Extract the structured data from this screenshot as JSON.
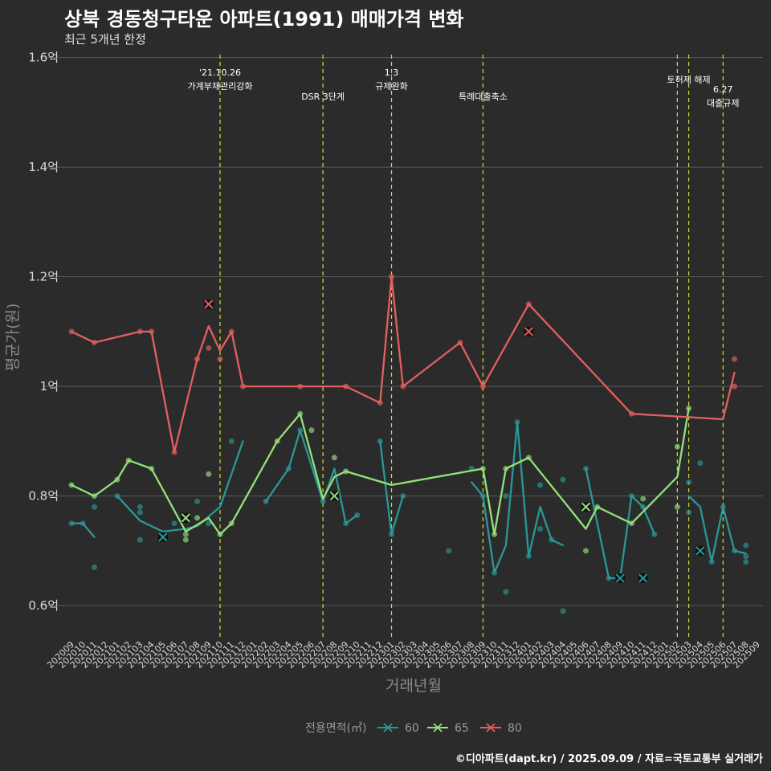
{
  "title": "상북 경동청구타운 아파트(1991) 매매가격 변화",
  "subtitle": "최근 5개년 한정",
  "caption": "©디아파트(dapt.kr) / 2025.09.09 / 자료=국토교통부 실거래가",
  "chart_data": {
    "type": "line",
    "xlabel": "거래년월",
    "ylabel": "평균가(원)",
    "ylim": [
      0.54,
      1.62
    ],
    "y_ticks": [
      {
        "value": 0.6,
        "label": "0.6억"
      },
      {
        "value": 0.8,
        "label": "0.8억"
      },
      {
        "value": 1.0,
        "label": "1억"
      },
      {
        "value": 1.2,
        "label": "1.2억"
      },
      {
        "value": 1.4,
        "label": "1.4억"
      },
      {
        "value": 1.6,
        "label": "1.6억"
      }
    ],
    "categories": [
      "202009",
      "202010",
      "202011",
      "202012",
      "202101",
      "202102",
      "202103",
      "202104",
      "202105",
      "202106",
      "202107",
      "202108",
      "202109",
      "202110",
      "202111",
      "202112",
      "202201",
      "202202",
      "202203",
      "202204",
      "202205",
      "202206",
      "202207",
      "202208",
      "202209",
      "202210",
      "202211",
      "202212",
      "202301",
      "202302",
      "202303",
      "202304",
      "202305",
      "202306",
      "202307",
      "202308",
      "202309",
      "202310",
      "202311",
      "202312",
      "202401",
      "202402",
      "202403",
      "202404",
      "202405",
      "202406",
      "202407",
      "202408",
      "202409",
      "202410",
      "202411",
      "202412",
      "202501",
      "202502",
      "202503",
      "202504",
      "202505",
      "202506",
      "202507",
      "202508",
      "202509"
    ],
    "grid": true,
    "legend_position": "bottom",
    "legend_title": "전용면적(㎡)",
    "colors": {
      "60": "#2a9896",
      "65": "#92e27a",
      "80": "#e35f5f"
    },
    "events": [
      {
        "x": "202110",
        "lines": [
          "'21.10.26",
          "가계부채관리강화"
        ]
      },
      {
        "x": "202207",
        "lines": [
          "DSR 3단계"
        ]
      },
      {
        "x": "202301",
        "lines": [
          "1.3",
          "규제완화"
        ]
      },
      {
        "x": "202309",
        "lines": [
          "특례대출축소"
        ]
      },
      {
        "x": "202502",
        "lines": []
      },
      {
        "x": "202503",
        "lines": [
          "토허제 해제"
        ]
      },
      {
        "x": "202506",
        "lines": [
          "6.27",
          "대출규제"
        ]
      }
    ],
    "series": [
      {
        "name": "60",
        "line_segments": [
          [
            [
              "202009",
              0.75
            ],
            [
              "202010",
              0.75
            ],
            [
              "202011",
              0.725
            ]
          ],
          [
            [
              "202101",
              0.8
            ],
            [
              "202103",
              0.755
            ],
            [
              "202105",
              0.735
            ],
            [
              "202107",
              0.74
            ],
            [
              "202108",
              0.745
            ],
            [
              "202110",
              0.78
            ],
            [
              "202112",
              0.9
            ]
          ],
          [
            [
              "202202",
              0.79
            ],
            [
              "202204",
              0.85
            ],
            [
              "202205",
              0.92
            ],
            [
              "202207",
              0.79
            ],
            [
              "202208",
              0.85
            ],
            [
              "202209",
              0.75
            ],
            [
              "202210",
              0.765
            ]
          ],
          [
            [
              "202212",
              0.9
            ],
            [
              "202301",
              0.73
            ],
            [
              "202302",
              0.8
            ]
          ],
          [
            [
              "202308",
              0.825
            ],
            [
              "202309",
              0.8
            ],
            [
              "202310",
              0.66
            ],
            [
              "202311",
              0.71
            ],
            [
              "202312",
              0.935
            ],
            [
              "202401",
              0.69
            ],
            [
              "202402",
              0.78
            ],
            [
              "202403",
              0.72
            ],
            [
              "202404",
              0.71
            ]
          ],
          [
            [
              "202406",
              0.85
            ],
            [
              "202408",
              0.65
            ],
            [
              "202409",
              0.65
            ],
            [
              "202410",
              0.8
            ],
            [
              "202411",
              0.78
            ],
            [
              "202412",
              0.73
            ]
          ],
          [
            [
              "202503",
              0.8
            ],
            [
              "202504",
              0.78
            ],
            [
              "202505",
              0.68
            ],
            [
              "202506",
              0.78
            ],
            [
              "202507",
              0.7
            ],
            [
              "202508",
              0.695
            ]
          ]
        ],
        "points": [
          [
            "202009",
            0.75
          ],
          [
            "202010",
            0.75
          ],
          [
            "202011",
            0.78
          ],
          [
            "202011",
            0.67
          ],
          [
            "202101",
            0.8
          ],
          [
            "202103",
            0.78
          ],
          [
            "202103",
            0.77
          ],
          [
            "202103",
            0.72
          ],
          [
            "202106",
            0.75
          ],
          [
            "202108",
            0.79
          ],
          [
            "202109",
            0.75
          ],
          [
            "202111",
            0.9
          ],
          [
            "202202",
            0.79
          ],
          [
            "202204",
            0.85
          ],
          [
            "202205",
            0.92
          ],
          [
            "202207",
            0.79
          ],
          [
            "202209",
            0.75
          ],
          [
            "202210",
            0.765
          ],
          [
            "202212",
            0.9
          ],
          [
            "202301",
            0.73
          ],
          [
            "202302",
            0.8
          ],
          [
            "202306",
            0.7
          ],
          [
            "202308",
            0.85
          ],
          [
            "202309",
            0.8
          ],
          [
            "202310",
            0.66
          ],
          [
            "202311",
            0.625
          ],
          [
            "202311",
            0.8
          ],
          [
            "202312",
            0.935
          ],
          [
            "202401",
            0.69
          ],
          [
            "202402",
            0.82
          ],
          [
            "202402",
            0.74
          ],
          [
            "202403",
            0.72
          ],
          [
            "202404",
            0.83
          ],
          [
            "202404",
            0.59
          ],
          [
            "202406",
            0.85
          ],
          [
            "202408",
            0.65
          ],
          [
            "202410",
            0.8
          ],
          [
            "202411",
            0.78
          ],
          [
            "202412",
            0.73
          ],
          [
            "202503",
            0.825
          ],
          [
            "202503",
            0.77
          ],
          [
            "202504",
            0.86
          ],
          [
            "202505",
            0.68
          ],
          [
            "202506",
            0.78
          ],
          [
            "202507",
            0.7
          ],
          [
            "202508",
            0.71
          ],
          [
            "202508",
            0.69
          ],
          [
            "202508",
            0.68
          ]
        ],
        "markers": [
          [
            "202105",
            0.725
          ],
          [
            "202409",
            0.65
          ],
          [
            "202411",
            0.65
          ],
          [
            "202504",
            0.7
          ]
        ]
      },
      {
        "name": "65",
        "line_segments": [
          [
            [
              "202009",
              0.82
            ],
            [
              "202011",
              0.8
            ],
            [
              "202101",
              0.83
            ],
            [
              "202102",
              0.865
            ],
            [
              "202104",
              0.85
            ],
            [
              "202107",
              0.735
            ],
            [
              "202109",
              0.76
            ],
            [
              "202110",
              0.73
            ],
            [
              "202111",
              0.75
            ],
            [
              "202203",
              0.9
            ],
            [
              "202205",
              0.95
            ],
            [
              "202207",
              0.795
            ],
            [
              "202208",
              0.835
            ],
            [
              "202209",
              0.845
            ],
            [
              "202301",
              0.82
            ],
            [
              "202309",
              0.85
            ],
            [
              "202310",
              0.73
            ],
            [
              "202311",
              0.85
            ],
            [
              "202401",
              0.87
            ],
            [
              "202406",
              0.74
            ],
            [
              "202407",
              0.78
            ],
            [
              "202410",
              0.75
            ],
            [
              "202502",
              0.835
            ],
            [
              "202503",
              0.96
            ]
          ]
        ],
        "points": [
          [
            "202009",
            0.82
          ],
          [
            "202011",
            0.8
          ],
          [
            "202101",
            0.83
          ],
          [
            "202102",
            0.865
          ],
          [
            "202104",
            0.85
          ],
          [
            "202107",
            0.73
          ],
          [
            "202107",
            0.72
          ],
          [
            "202108",
            0.76
          ],
          [
            "202109",
            0.84
          ],
          [
            "202110",
            0.73
          ],
          [
            "202111",
            0.75
          ],
          [
            "202203",
            0.9
          ],
          [
            "202205",
            0.95
          ],
          [
            "202206",
            0.92
          ],
          [
            "202208",
            0.87
          ],
          [
            "202209",
            0.845
          ],
          [
            "202309",
            0.85
          ],
          [
            "202310",
            0.73
          ],
          [
            "202311",
            0.85
          ],
          [
            "202401",
            0.87
          ],
          [
            "202406",
            0.7
          ],
          [
            "202407",
            0.78
          ],
          [
            "202410",
            0.75
          ],
          [
            "202411",
            0.795
          ],
          [
            "202502",
            0.89
          ],
          [
            "202502",
            0.78
          ],
          [
            "202503",
            0.96
          ]
        ],
        "markers": [
          [
            "202107",
            0.76
          ],
          [
            "202208",
            0.8
          ],
          [
            "202406",
            0.78
          ]
        ]
      },
      {
        "name": "80",
        "line_segments": [
          [
            [
              "202009",
              1.1
            ],
            [
              "202011",
              1.08
            ],
            [
              "202103",
              1.1
            ],
            [
              "202104",
              1.1
            ],
            [
              "202106",
              0.88
            ],
            [
              "202108",
              1.05
            ],
            [
              "202109",
              1.11
            ],
            [
              "202110",
              1.065
            ],
            [
              "202111",
              1.1
            ],
            [
              "202112",
              1.0
            ],
            [
              "202205",
              1.0
            ],
            [
              "202209",
              1.0
            ],
            [
              "202212",
              0.97
            ],
            [
              "202301",
              1.2
            ],
            [
              "202302",
              1.0
            ],
            [
              "202307",
              1.08
            ],
            [
              "202309",
              1.0
            ],
            [
              "202401",
              1.15
            ],
            [
              "202410",
              0.95
            ],
            [
              "202506",
              0.94
            ],
            [
              "202507",
              1.025
            ]
          ]
        ],
        "points": [
          [
            "202009",
            1.1
          ],
          [
            "202011",
            1.08
          ],
          [
            "202103",
            1.1
          ],
          [
            "202104",
            1.1
          ],
          [
            "202106",
            0.88
          ],
          [
            "202108",
            1.05
          ],
          [
            "202109",
            1.07
          ],
          [
            "202110",
            1.05
          ],
          [
            "202111",
            1.1
          ],
          [
            "202112",
            1.0
          ],
          [
            "202205",
            1.0
          ],
          [
            "202209",
            1.0
          ],
          [
            "202212",
            0.97
          ],
          [
            "202301",
            1.2
          ],
          [
            "202302",
            1.0
          ],
          [
            "202307",
            1.08
          ],
          [
            "202309",
            1.0
          ],
          [
            "202401",
            1.15
          ],
          [
            "202410",
            0.95
          ],
          [
            "202507",
            1.05
          ],
          [
            "202507",
            1.0
          ]
        ],
        "markers": [
          [
            "202109",
            1.15
          ],
          [
            "202401",
            1.1
          ]
        ]
      }
    ]
  }
}
